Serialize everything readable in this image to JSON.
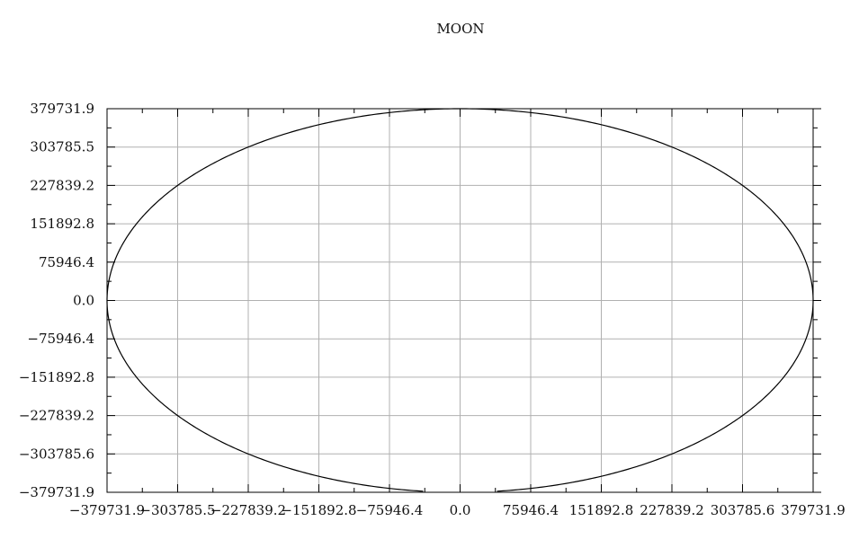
{
  "chart_data": {
    "type": "line",
    "title": "MOON",
    "xlabel": "",
    "ylabel": "",
    "xlim": [
      -379731.9,
      379731.9
    ],
    "ylim": [
      -379731.9,
      379731.9
    ],
    "grid": true,
    "x_ticks": [
      -379731.9,
      -303785.5,
      -227839.2,
      -151892.8,
      -75946.4,
      0.0,
      75946.4,
      151892.8,
      227839.2,
      303785.6,
      379731.9
    ],
    "x_tick_labels": [
      "−379731.9",
      "−303785.5",
      "−227839.2",
      "−151892.8",
      "−75946.4",
      "0.0",
      "75946.4",
      "151892.8",
      "227839.2",
      "303785.6",
      "379731.9"
    ],
    "y_ticks": [
      379731.9,
      303785.5,
      227839.2,
      151892.8,
      75946.4,
      0.0,
      -75946.4,
      -151892.8,
      -227839.2,
      -303785.6,
      -379731.9
    ],
    "y_tick_labels": [
      "379731.9",
      "303785.5",
      "227839.2",
      "151892.8",
      "75946.4",
      "0.0",
      "−75946.4",
      "−151892.8",
      "−227839.2",
      "−303785.6",
      "−379731.9"
    ],
    "series": [
      {
        "orbit": "circular",
        "center": [
          0,
          0
        ],
        "radius": 379731.9,
        "gap_x_range": [
          -37000,
          37000
        ],
        "gap_side": "bottom",
        "color": "#000000"
      }
    ]
  }
}
